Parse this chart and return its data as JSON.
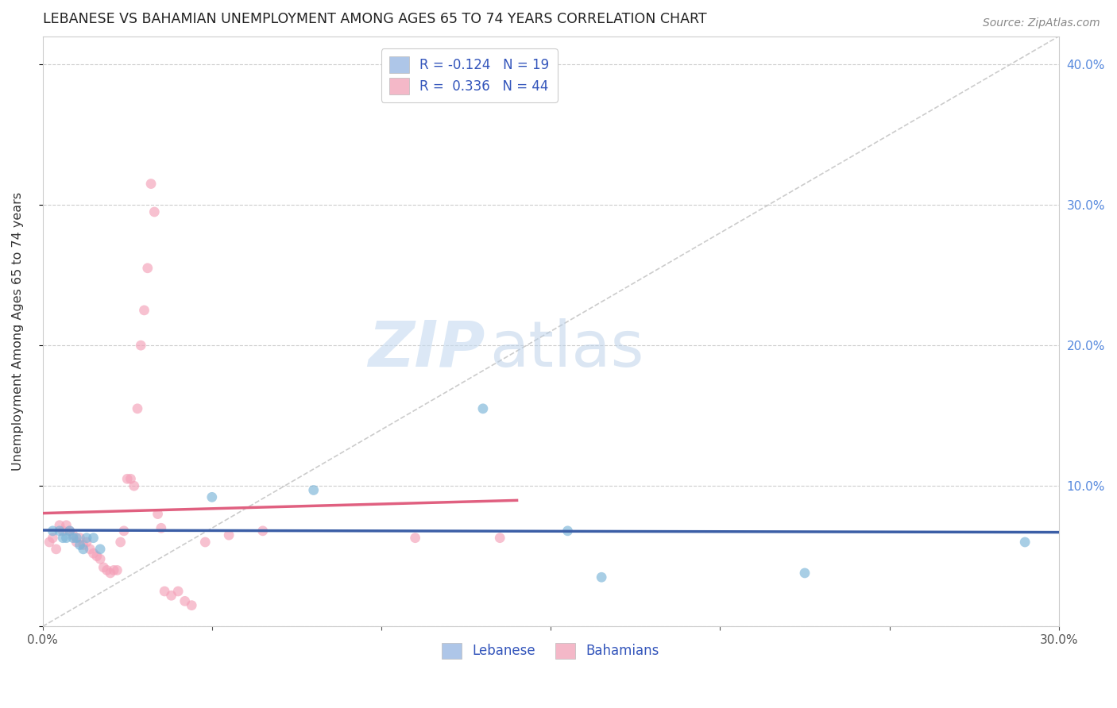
{
  "title": "LEBANESE VS BAHAMIAN UNEMPLOYMENT AMONG AGES 65 TO 74 YEARS CORRELATION CHART",
  "source": "Source: ZipAtlas.com",
  "ylabel": "Unemployment Among Ages 65 to 74 years",
  "xlim": [
    0.0,
    0.3
  ],
  "ylim": [
    0.0,
    0.42
  ],
  "x_ticks": [
    0.0,
    0.05,
    0.1,
    0.15,
    0.2,
    0.25,
    0.3
  ],
  "x_tick_labels": [
    "0.0%",
    "",
    "",
    "",
    "",
    "",
    "30.0%"
  ],
  "y_ticks": [
    0.0,
    0.1,
    0.2,
    0.3,
    0.4
  ],
  "y_tick_labels_right": [
    "",
    "10.0%",
    "20.0%",
    "30.0%",
    "40.0%"
  ],
  "legend_entries": [
    {
      "label": "R = -0.124   N = 19",
      "color": "#aec6e8"
    },
    {
      "label": "R =  0.336   N = 44",
      "color": "#f4b8c8"
    }
  ],
  "legend_bottom": [
    "Lebanese",
    "Bahamians"
  ],
  "legend_bottom_colors": [
    "#aec6e8",
    "#f4b8c8"
  ],
  "watermark_zip": "ZIP",
  "watermark_atlas": "atlas",
  "diagonal_line": {
    "x": [
      0.0,
      0.3
    ],
    "y": [
      0.0,
      0.42
    ]
  },
  "lebanese_scatter": [
    [
      0.003,
      0.068
    ],
    [
      0.005,
      0.068
    ],
    [
      0.006,
      0.063
    ],
    [
      0.007,
      0.063
    ],
    [
      0.008,
      0.068
    ],
    [
      0.009,
      0.063
    ],
    [
      0.01,
      0.063
    ],
    [
      0.011,
      0.058
    ],
    [
      0.012,
      0.055
    ],
    [
      0.013,
      0.063
    ],
    [
      0.015,
      0.063
    ],
    [
      0.017,
      0.055
    ],
    [
      0.05,
      0.092
    ],
    [
      0.08,
      0.097
    ],
    [
      0.13,
      0.155
    ],
    [
      0.155,
      0.068
    ],
    [
      0.165,
      0.035
    ],
    [
      0.225,
      0.038
    ],
    [
      0.29,
      0.06
    ]
  ],
  "bahamian_scatter": [
    [
      0.002,
      0.06
    ],
    [
      0.003,
      0.063
    ],
    [
      0.004,
      0.055
    ],
    [
      0.005,
      0.072
    ],
    [
      0.006,
      0.068
    ],
    [
      0.007,
      0.072
    ],
    [
      0.008,
      0.068
    ],
    [
      0.009,
      0.065
    ],
    [
      0.01,
      0.06
    ],
    [
      0.011,
      0.063
    ],
    [
      0.012,
      0.058
    ],
    [
      0.013,
      0.06
    ],
    [
      0.014,
      0.055
    ],
    [
      0.015,
      0.052
    ],
    [
      0.016,
      0.05
    ],
    [
      0.017,
      0.048
    ],
    [
      0.018,
      0.042
    ],
    [
      0.019,
      0.04
    ],
    [
      0.02,
      0.038
    ],
    [
      0.021,
      0.04
    ],
    [
      0.022,
      0.04
    ],
    [
      0.023,
      0.06
    ],
    [
      0.024,
      0.068
    ],
    [
      0.025,
      0.105
    ],
    [
      0.026,
      0.105
    ],
    [
      0.027,
      0.1
    ],
    [
      0.028,
      0.155
    ],
    [
      0.029,
      0.2
    ],
    [
      0.03,
      0.225
    ],
    [
      0.031,
      0.255
    ],
    [
      0.032,
      0.315
    ],
    [
      0.033,
      0.295
    ],
    [
      0.034,
      0.08
    ],
    [
      0.035,
      0.07
    ],
    [
      0.036,
      0.025
    ],
    [
      0.038,
      0.022
    ],
    [
      0.04,
      0.025
    ],
    [
      0.042,
      0.018
    ],
    [
      0.044,
      0.015
    ],
    [
      0.048,
      0.06
    ],
    [
      0.055,
      0.065
    ],
    [
      0.065,
      0.068
    ],
    [
      0.11,
      0.063
    ],
    [
      0.135,
      0.063
    ]
  ],
  "lebanese_color": "#7ab4d8",
  "bahamian_color": "#f4a0b8",
  "lebanese_line_color": "#3b5ea6",
  "bahamian_line_color": "#e06080",
  "diagonal_color": "#cccccc",
  "scatter_size": 85,
  "scatter_alpha": 0.65,
  "bahamian_trend_xlim": [
    0.0,
    0.14
  ],
  "lebanese_trend_xlim": [
    0.0,
    0.3
  ]
}
